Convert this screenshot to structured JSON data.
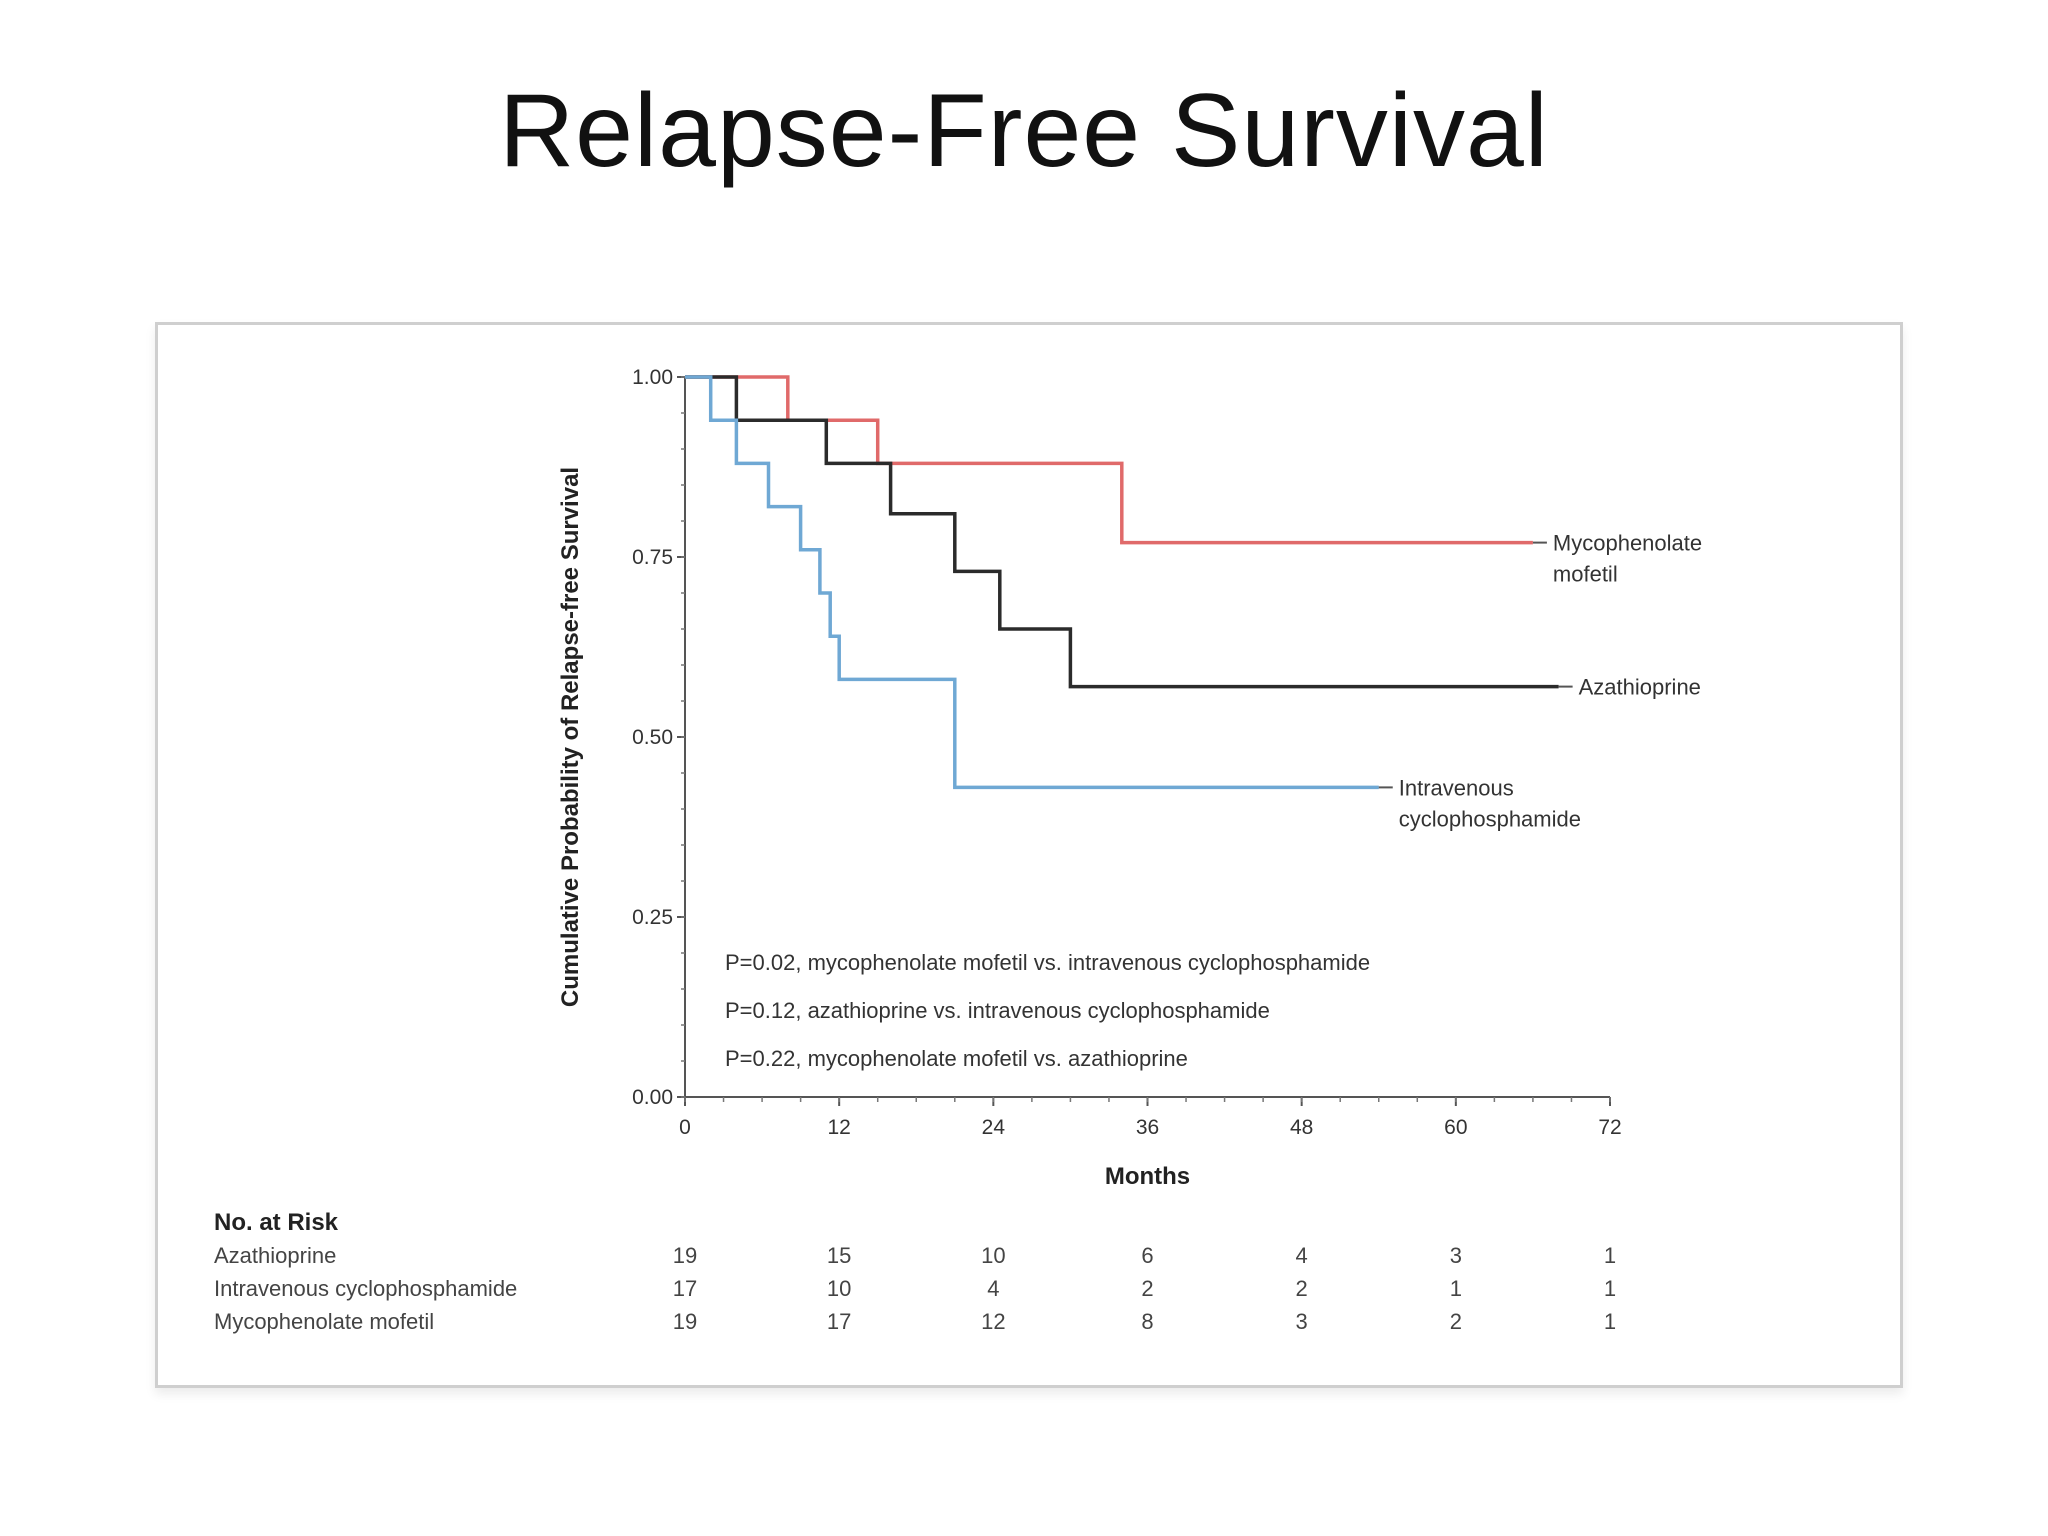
{
  "slide": {
    "title": "Relapse-Free Survival"
  },
  "chart_data": {
    "type": "line",
    "step": true,
    "xlabel": "Months",
    "ylabel": "Cumulative Probability of Relapse-free Survival",
    "xlim": [
      0,
      72
    ],
    "ylim": [
      0,
      1
    ],
    "xticks": [
      0,
      12,
      24,
      36,
      48,
      60,
      72
    ],
    "yticks": [
      0.0,
      0.25,
      0.5,
      0.75,
      1.0
    ],
    "ytick_labels": [
      "0.00",
      "0.25",
      "0.50",
      "0.75",
      "1.00"
    ],
    "grid": false,
    "series": [
      {
        "name": "Mycophenolate mofetil",
        "label_lines": [
          "Mycophenolate",
          "mofetil"
        ],
        "color": "#e06a6a",
        "points": [
          [
            0,
            1.0
          ],
          [
            8,
            1.0
          ],
          [
            8,
            0.94
          ],
          [
            15,
            0.94
          ],
          [
            15,
            0.88
          ],
          [
            34,
            0.88
          ],
          [
            34,
            0.77
          ],
          [
            66,
            0.77
          ]
        ]
      },
      {
        "name": "Azathioprine",
        "label_lines": [
          "Azathioprine"
        ],
        "color": "#2b2b2b",
        "points": [
          [
            0,
            1.0
          ],
          [
            4,
            1.0
          ],
          [
            4,
            0.94
          ],
          [
            11,
            0.94
          ],
          [
            11,
            0.88
          ],
          [
            16,
            0.88
          ],
          [
            16,
            0.81
          ],
          [
            21,
            0.81
          ],
          [
            21,
            0.73
          ],
          [
            24.5,
            0.73
          ],
          [
            24.5,
            0.65
          ],
          [
            30,
            0.65
          ],
          [
            30,
            0.57
          ],
          [
            68,
            0.57
          ]
        ]
      },
      {
        "name": "Intravenous cyclophosphamide",
        "label_lines": [
          "Intravenous",
          "cyclophosphamide"
        ],
        "color": "#6fa8d4",
        "points": [
          [
            0,
            1.0
          ],
          [
            2,
            1.0
          ],
          [
            2,
            0.94
          ],
          [
            4,
            0.94
          ],
          [
            4,
            0.88
          ],
          [
            6.5,
            0.88
          ],
          [
            6.5,
            0.82
          ],
          [
            9,
            0.82
          ],
          [
            9,
            0.76
          ],
          [
            10.5,
            0.76
          ],
          [
            10.5,
            0.7
          ],
          [
            11.3,
            0.7
          ],
          [
            11.3,
            0.64
          ],
          [
            12,
            0.64
          ],
          [
            12,
            0.58
          ],
          [
            21,
            0.58
          ],
          [
            21,
            0.43
          ],
          [
            54,
            0.43
          ]
        ]
      }
    ],
    "annotations": [
      "P=0.02, mycophenolate mofetil vs. intravenous cyclophosphamide",
      "P=0.12, azathioprine vs. intravenous cyclophosphamide",
      "P=0.22, mycophenolate mofetil vs. azathioprine"
    ],
    "risk_table": {
      "title": "No. at Risk",
      "times": [
        0,
        12,
        24,
        36,
        48,
        60,
        72
      ],
      "rows": [
        {
          "name": "Azathioprine",
          "values": [
            "19",
            "15",
            "10",
            "6",
            "4",
            "3",
            "1"
          ]
        },
        {
          "name": "Intravenous cyclophosphamide",
          "values": [
            "17",
            "10",
            "4",
            "2",
            "2",
            "1",
            "1"
          ]
        },
        {
          "name": "Mycophenolate mofetil",
          "values": [
            "19",
            "17",
            "12",
            "8",
            "3",
            "2",
            "1"
          ]
        }
      ]
    }
  }
}
